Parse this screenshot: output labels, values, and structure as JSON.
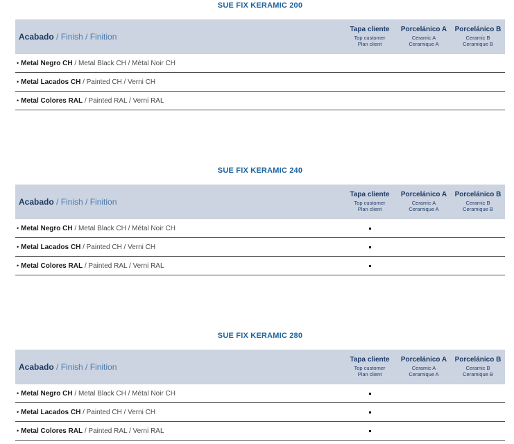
{
  "page": {
    "bullet": "•"
  },
  "colors": {
    "title_blue": "#1e639e",
    "header_band_bg": "#ccd3e1",
    "header_navy": "#1c3a64",
    "finish_blue": "#4d7dad",
    "row_bold": "#1a1a1a",
    "row_text": "#4a4a4a",
    "separator": "#4f4f4f"
  },
  "tables": [
    {
      "title": "SUE FIX KERAMIC 200",
      "header": {
        "acabado": "Acabado",
        "finish_rest": " / Finish / Finition",
        "columns": [
          {
            "main": "Tapa cliente",
            "sub1": "Top customer",
            "sub2": "Plan client"
          },
          {
            "main": "Porcelánico A",
            "sub1": "Ceramic A",
            "sub2": "Ceramique A"
          },
          {
            "main": "Porcelánico B",
            "sub1": "Ceramic B",
            "sub2": "Ceramique B"
          }
        ]
      },
      "rows": [
        {
          "bold": "Metal Negro CH",
          "rest": " / Metal Black CH / Métal Noir CH",
          "dots": [
            false,
            false,
            false
          ]
        },
        {
          "bold": "Metal Lacados CH",
          "rest": " / Painted CH / Verni CH",
          "dots": [
            false,
            false,
            false
          ]
        },
        {
          "bold": "Metal Colores RAL",
          "rest": " / Painted RAL / Verni RAL",
          "dots": [
            false,
            false,
            false
          ]
        }
      ]
    },
    {
      "title": "SUE FIX KERAMIC 240",
      "header": {
        "acabado": "Acabado",
        "finish_rest": " / Finish / Finition",
        "columns": [
          {
            "main": "Tapa cliente",
            "sub1": "Top customer",
            "sub2": "Plan client"
          },
          {
            "main": "Porcelánico A",
            "sub1": "Ceramic A",
            "sub2": "Ceramique A"
          },
          {
            "main": "Porcelánico B",
            "sub1": "Ceramic B",
            "sub2": "Ceramique B"
          }
        ]
      },
      "rows": [
        {
          "bold": "Metal Negro CH",
          "rest": " / Metal Black CH / Métal Noir CH",
          "dots": [
            true,
            false,
            false
          ]
        },
        {
          "bold": "Metal Lacados CH",
          "rest": " / Painted CH / Verni CH",
          "dots": [
            true,
            false,
            false
          ]
        },
        {
          "bold": "Metal Colores RAL",
          "rest": " / Painted RAL / Verni RAL",
          "dots": [
            true,
            false,
            false
          ]
        }
      ]
    },
    {
      "title": "SUE FIX KERAMIC 280",
      "header": {
        "acabado": "Acabado",
        "finish_rest": " / Finish / Finition",
        "columns": [
          {
            "main": "Tapa cliente",
            "sub1": "Top customer",
            "sub2": "Plan client"
          },
          {
            "main": "Porcelánico A",
            "sub1": "Ceramic A",
            "sub2": "Ceramique A"
          },
          {
            "main": "Porcelánico B",
            "sub1": "Ceramic B",
            "sub2": "Ceramique B"
          }
        ]
      },
      "rows": [
        {
          "bold": "Metal Negro CH",
          "rest": " / Metal Black CH / Métal Noir CH",
          "dots": [
            true,
            false,
            false
          ]
        },
        {
          "bold": "Metal Lacados CH",
          "rest": " / Painted CH / Verni CH",
          "dots": [
            true,
            false,
            false
          ]
        },
        {
          "bold": "Metal Colores RAL",
          "rest": " / Painted RAL / Verni RAL",
          "dots": [
            true,
            false,
            false
          ]
        }
      ]
    }
  ]
}
